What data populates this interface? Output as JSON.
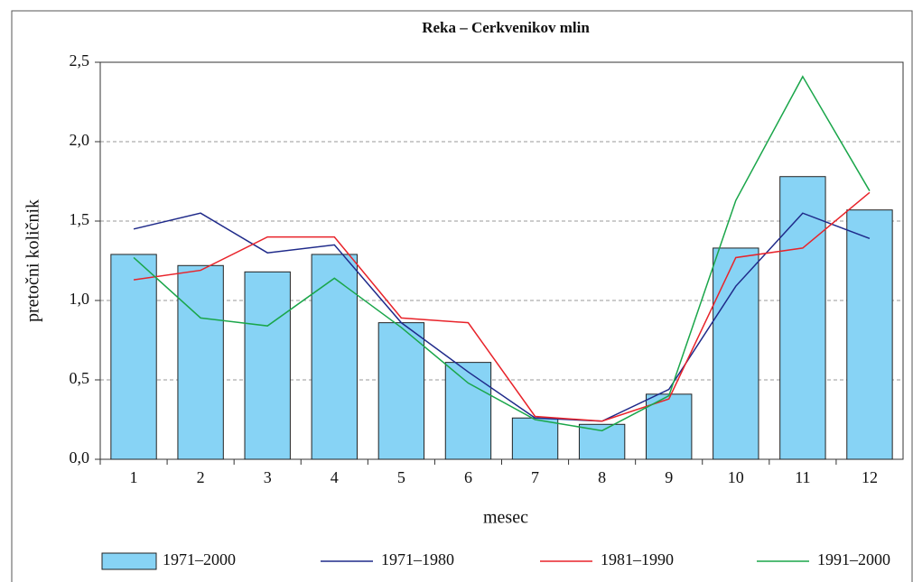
{
  "chart_data": {
    "type": "bar-line",
    "title": "Reka – Cerkvenikov mlin",
    "xlabel": "mesec",
    "ylabel": "pretočni količnik",
    "categories": [
      "1",
      "2",
      "3",
      "4",
      "5",
      "6",
      "7",
      "8",
      "9",
      "10",
      "11",
      "12"
    ],
    "series": [
      {
        "name": "1971–2000",
        "type": "bar",
        "color": "#87d3f5",
        "values": [
          1.29,
          1.22,
          1.18,
          1.29,
          0.86,
          0.61,
          0.26,
          0.22,
          0.41,
          1.33,
          1.78,
          1.57
        ]
      },
      {
        "name": "1971–1980",
        "type": "line",
        "color": "#1f2a8a",
        "values": [
          1.45,
          1.55,
          1.3,
          1.35,
          0.86,
          0.55,
          0.26,
          0.24,
          0.44,
          1.09,
          1.55,
          1.39
        ]
      },
      {
        "name": "1981–1990",
        "type": "line",
        "color": "#e8232a",
        "values": [
          1.13,
          1.19,
          1.4,
          1.4,
          0.89,
          0.86,
          0.27,
          0.24,
          0.38,
          1.27,
          1.33,
          1.68
        ]
      },
      {
        "name": "1991–2000",
        "type": "line",
        "color": "#1aa64a",
        "values": [
          1.27,
          0.89,
          0.84,
          1.14,
          0.83,
          0.48,
          0.25,
          0.18,
          0.4,
          1.63,
          2.41,
          1.69
        ]
      }
    ],
    "ylim": [
      0,
      2.5
    ],
    "yticks": [
      {
        "value": 0,
        "label": "0,0"
      },
      {
        "value": 0.5,
        "label": "0,5"
      },
      {
        "value": 1,
        "label": "1,0"
      },
      {
        "value": 1.5,
        "label": "1,5"
      },
      {
        "value": 2,
        "label": "2,0"
      },
      {
        "value": 2.5,
        "label": "2,5"
      }
    ],
    "grid": true
  }
}
